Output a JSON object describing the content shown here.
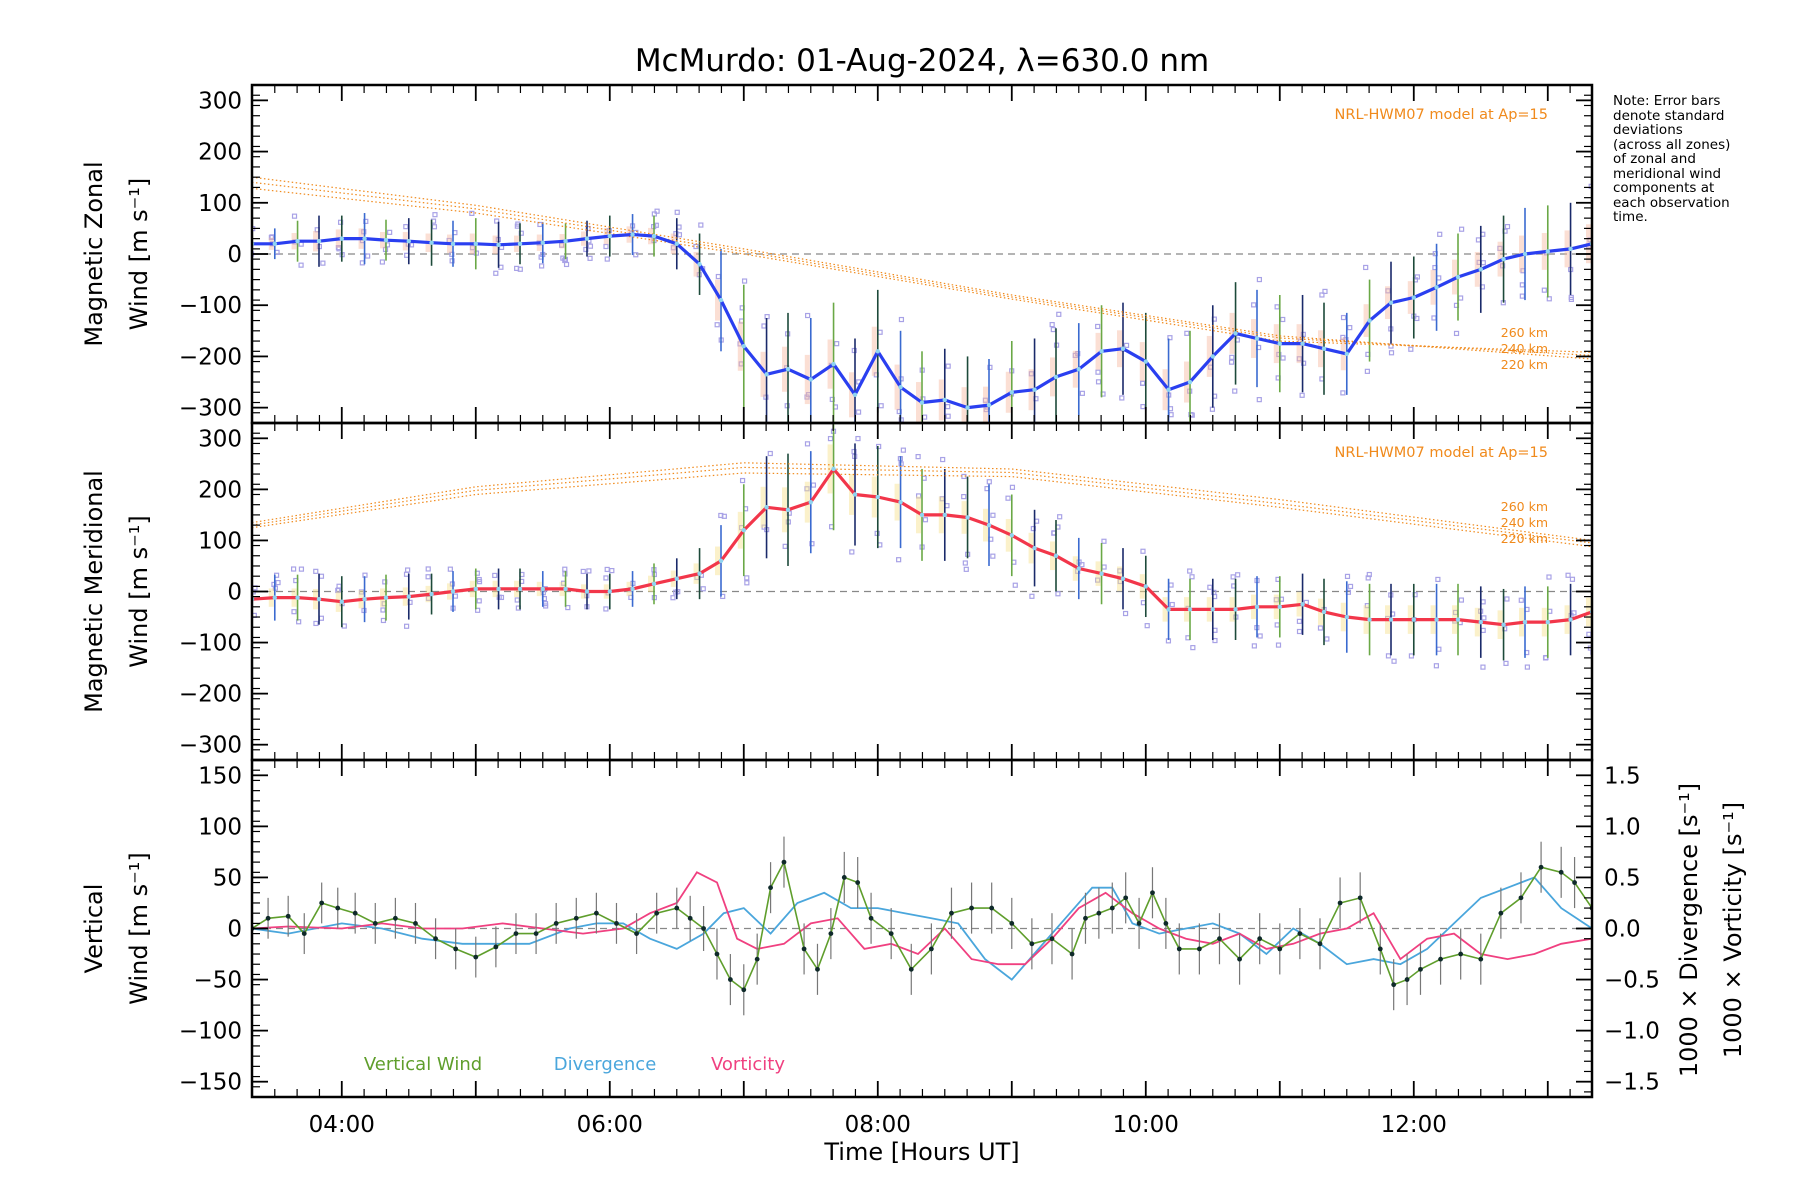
{
  "title": "McMurdo: 01-Aug-2024, λ=630.0 nm",
  "note": "Note: Error bars\ndenote standard\ndeviations\n(across all zones)\nof zonal and\nmeridional wind\ncomponents at\neach observation\ntime.",
  "colors": {
    "zonal": "#2a3ff0",
    "meridional": "#f2364a",
    "vertical": "#5f9e2c",
    "divergence": "#4aa6dc",
    "vorticity": "#f04080",
    "model": "#f08a1c",
    "scatter": "#a8a2e6",
    "zero_line": "#888888"
  },
  "xaxis": {
    "label": "Time [Hours UT]",
    "range": [
      3.33,
      13.33
    ],
    "ticks": [
      "04:00",
      "06:00",
      "08:00",
      "10:00",
      "12:00"
    ]
  },
  "chart_data": [
    {
      "type": "line",
      "ylabel_line1": "Magnetic Zonal",
      "ylabel_line2": "Wind [m s⁻¹]",
      "ylim": [
        -330,
        330
      ],
      "yticks": [
        "300",
        "200",
        "100",
        "0",
        "−100",
        "−200",
        "−300"
      ],
      "model_label": "NRL-HWM07 model at Ap=15",
      "model_altitudes": [
        "260 km",
        "240 km",
        "220 km"
      ],
      "model_curves": [
        {
          "x": [
            3.33,
            5,
            7,
            9,
            11,
            13.33
          ],
          "y": [
            150,
            95,
            10,
            -80,
            -160,
            -205
          ]
        },
        {
          "x": [
            3.33,
            5,
            7,
            9,
            11,
            13.33
          ],
          "y": [
            140,
            88,
            5,
            -84,
            -164,
            -198
          ]
        },
        {
          "x": [
            3.33,
            5,
            7,
            9,
            11,
            13.33
          ],
          "y": [
            128,
            80,
            0,
            -88,
            -170,
            -192
          ]
        }
      ],
      "series": [
        {
          "name": "Zonal wind",
          "x": [
            3.33,
            3.5,
            3.67,
            3.83,
            4.0,
            4.17,
            4.33,
            4.5,
            4.67,
            4.83,
            5.0,
            5.17,
            5.33,
            5.5,
            5.67,
            5.83,
            6.0,
            6.17,
            6.33,
            6.5,
            6.67,
            6.83,
            7.0,
            7.17,
            7.33,
            7.5,
            7.67,
            7.83,
            8.0,
            8.17,
            8.33,
            8.5,
            8.67,
            8.83,
            9.0,
            9.17,
            9.33,
            9.5,
            9.67,
            9.83,
            10.0,
            10.17,
            10.33,
            10.5,
            10.67,
            10.83,
            11.0,
            11.17,
            11.33,
            11.5,
            11.67,
            11.83,
            12.0,
            12.17,
            12.33,
            12.5,
            12.67,
            12.83,
            13.0,
            13.17,
            13.33
          ],
          "y": [
            20,
            20,
            25,
            25,
            30,
            30,
            27,
            25,
            22,
            20,
            20,
            18,
            20,
            22,
            25,
            30,
            35,
            38,
            35,
            20,
            -20,
            -90,
            -180,
            -235,
            -225,
            -245,
            -215,
            -275,
            -190,
            -260,
            -290,
            -285,
            -300,
            -295,
            -270,
            -265,
            -240,
            -225,
            -190,
            -185,
            -210,
            -265,
            -250,
            -200,
            -155,
            -165,
            -175,
            -175,
            -185,
            -195,
            -130,
            -95,
            -85,
            -65,
            -45,
            -30,
            -10,
            0,
            5,
            10,
            20
          ],
          "err": [
            30,
            30,
            40,
            50,
            45,
            50,
            40,
            45,
            45,
            45,
            50,
            45,
            40,
            40,
            35,
            35,
            40,
            40,
            40,
            50,
            60,
            100,
            120,
            110,
            110,
            120,
            120,
            110,
            120,
            110,
            100,
            100,
            100,
            90,
            100,
            100,
            95,
            90,
            90,
            90,
            95,
            100,
            100,
            100,
            100,
            95,
            95,
            95,
            90,
            80,
            80,
            80,
            80,
            85,
            85,
            85,
            85,
            90,
            90,
            90,
            95
          ]
        }
      ]
    },
    {
      "type": "line",
      "ylabel_line1": "Magnetic Meridional",
      "ylabel_line2": "Wind [m s⁻¹]",
      "ylim": [
        -330,
        330
      ],
      "yticks": [
        "300",
        "200",
        "100",
        "0",
        "−100",
        "−200",
        "−300"
      ],
      "model_label": "NRL-HWM07 model at Ap=15",
      "model_altitudes": [
        "260 km",
        "240 km",
        "220 km"
      ],
      "model_curves": [
        {
          "x": [
            3.33,
            5,
            7,
            9,
            11,
            13.33
          ],
          "y": [
            135,
            205,
            252,
            240,
            180,
            100
          ]
        },
        {
          "x": [
            3.33,
            5,
            7,
            9,
            11,
            13.33
          ],
          "y": [
            130,
            198,
            243,
            233,
            172,
            95
          ]
        },
        {
          "x": [
            3.33,
            5,
            7,
            9,
            11,
            13.33
          ],
          "y": [
            125,
            190,
            232,
            225,
            165,
            88
          ]
        }
      ],
      "series": [
        {
          "name": "Meridional wind",
          "x": [
            3.33,
            3.5,
            3.67,
            3.83,
            4.0,
            4.17,
            4.33,
            4.5,
            4.67,
            4.83,
            5.0,
            5.17,
            5.33,
            5.5,
            5.67,
            5.83,
            6.0,
            6.17,
            6.33,
            6.5,
            6.67,
            6.83,
            7.0,
            7.17,
            7.33,
            7.5,
            7.67,
            7.83,
            8.0,
            8.17,
            8.33,
            8.5,
            8.67,
            8.83,
            9.0,
            9.17,
            9.33,
            9.5,
            9.67,
            9.83,
            10.0,
            10.17,
            10.33,
            10.5,
            10.67,
            10.83,
            11.0,
            11.17,
            11.33,
            11.5,
            11.67,
            11.83,
            12.0,
            12.17,
            12.33,
            12.5,
            12.67,
            12.83,
            13.0,
            13.17,
            13.33
          ],
          "y": [
            -15,
            -12,
            -12,
            -15,
            -20,
            -15,
            -12,
            -10,
            -5,
            0,
            5,
            5,
            5,
            5,
            5,
            0,
            0,
            5,
            15,
            25,
            35,
            60,
            120,
            165,
            160,
            175,
            240,
            190,
            185,
            175,
            150,
            150,
            145,
            130,
            110,
            85,
            70,
            45,
            35,
            25,
            10,
            -35,
            -35,
            -35,
            -35,
            -30,
            -30,
            -25,
            -40,
            -50,
            -55,
            -55,
            -55,
            -55,
            -55,
            -60,
            -65,
            -60,
            -60,
            -55,
            -40
          ],
          "err": [
            40,
            45,
            45,
            50,
            50,
            45,
            45,
            45,
            40,
            40,
            40,
            40,
            40,
            35,
            35,
            35,
            35,
            35,
            40,
            40,
            50,
            70,
            90,
            100,
            110,
            100,
            120,
            100,
            100,
            90,
            90,
            90,
            80,
            80,
            80,
            75,
            70,
            60,
            60,
            60,
            60,
            60,
            60,
            60,
            60,
            60,
            60,
            60,
            65,
            70,
            70,
            70,
            70,
            70,
            70,
            70,
            70,
            70,
            70,
            70,
            70
          ]
        }
      ]
    },
    {
      "type": "line",
      "ylabel_line1": "Vertical",
      "ylabel_line2": "Wind [m s⁻¹]",
      "ylim": [
        -165,
        165
      ],
      "yticks": [
        "150",
        "100",
        "50",
        "0",
        "−50",
        "−100",
        "−150"
      ],
      "y2label_line1": "1000 × Divergence [s⁻¹]",
      "y2label_line2": "1000 × Vorticity [s⁻¹]",
      "y2lim": [
        -1.65,
        1.65
      ],
      "y2ticks": [
        "1.5",
        "1.0",
        "0.5",
        "0.0",
        "−0.5",
        "−1.0",
        "−1.5"
      ],
      "legend": [
        "Vertical Wind",
        "Divergence",
        "Vorticity"
      ],
      "series": [
        {
          "name": "Vertical Wind",
          "x": [
            3.33,
            3.45,
            3.6,
            3.72,
            3.85,
            3.97,
            4.1,
            4.25,
            4.4,
            4.55,
            4.7,
            4.85,
            5.0,
            5.15,
            5.3,
            5.45,
            5.6,
            5.75,
            5.9,
            6.05,
            6.2,
            6.35,
            6.5,
            6.6,
            6.7,
            6.8,
            6.9,
            7.0,
            7.1,
            7.2,
            7.3,
            7.45,
            7.55,
            7.65,
            7.75,
            7.85,
            7.95,
            8.1,
            8.25,
            8.4,
            8.55,
            8.7,
            8.85,
            9.0,
            9.15,
            9.3,
            9.45,
            9.55,
            9.65,
            9.75,
            9.85,
            9.95,
            10.05,
            10.15,
            10.25,
            10.4,
            10.55,
            10.7,
            10.85,
            11.0,
            11.15,
            11.3,
            11.45,
            11.6,
            11.75,
            11.85,
            11.95,
            12.05,
            12.2,
            12.35,
            12.5,
            12.65,
            12.8,
            12.95,
            13.1,
            13.2,
            13.33
          ],
          "y": [
            0,
            10,
            12,
            -5,
            25,
            20,
            15,
            5,
            10,
            5,
            -10,
            -20,
            -28,
            -18,
            -5,
            -5,
            5,
            10,
            15,
            5,
            -5,
            15,
            20,
            10,
            0,
            -25,
            -50,
            -60,
            -30,
            40,
            65,
            -20,
            -40,
            -5,
            50,
            45,
            10,
            -5,
            -40,
            -20,
            15,
            20,
            20,
            5,
            -15,
            -10,
            -25,
            10,
            15,
            20,
            30,
            5,
            35,
            5,
            -20,
            -20,
            -10,
            -30,
            -10,
            -20,
            -5,
            -15,
            25,
            30,
            -20,
            -55,
            -50,
            -40,
            -30,
            -25,
            -30,
            15,
            30,
            60,
            55,
            45,
            20
          ],
          "err": [
            20,
            20,
            20,
            20,
            20,
            20,
            20,
            20,
            20,
            20,
            20,
            20,
            20,
            20,
            20,
            20,
            20,
            20,
            20,
            20,
            20,
            20,
            20,
            22,
            22,
            25,
            25,
            25,
            25,
            25,
            25,
            25,
            25,
            25,
            25,
            25,
            25,
            25,
            25,
            25,
            25,
            25,
            25,
            25,
            25,
            25,
            25,
            25,
            25,
            25,
            25,
            25,
            25,
            25,
            25,
            25,
            25,
            25,
            25,
            25,
            25,
            25,
            25,
            25,
            25,
            25,
            25,
            25,
            25,
            25,
            25,
            25,
            25,
            25,
            25,
            25,
            25
          ]
        },
        {
          "name": "Divergence",
          "x": [
            3.33,
            3.6,
            4.0,
            4.3,
            4.6,
            4.9,
            5.1,
            5.4,
            5.7,
            5.9,
            6.1,
            6.3,
            6.5,
            6.7,
            6.85,
            7.0,
            7.2,
            7.4,
            7.6,
            7.8,
            8.0,
            8.2,
            8.4,
            8.6,
            8.8,
            9.0,
            9.2,
            9.4,
            9.6,
            9.75,
            9.9,
            10.1,
            10.3,
            10.5,
            10.7,
            10.9,
            11.1,
            11.3,
            11.5,
            11.7,
            11.9,
            12.1,
            12.3,
            12.5,
            12.7,
            12.9,
            13.1,
            13.33
          ],
          "y": [
            0.0,
            -0.05,
            0.05,
            0.0,
            -0.1,
            -0.15,
            -0.15,
            -0.15,
            0.0,
            0.05,
            0.05,
            -0.1,
            -0.2,
            -0.05,
            0.15,
            0.2,
            -0.05,
            0.25,
            0.35,
            0.2,
            0.2,
            0.15,
            0.1,
            0.05,
            -0.3,
            -0.5,
            -0.2,
            0.1,
            0.4,
            0.4,
            0.05,
            -0.05,
            0.0,
            0.05,
            -0.05,
            -0.25,
            0.0,
            -0.15,
            -0.35,
            -0.3,
            -0.35,
            -0.2,
            0.05,
            0.3,
            0.4,
            0.5,
            0.2,
            0.0
          ]
        },
        {
          "name": "Vorticity",
          "x": [
            3.33,
            3.6,
            4.0,
            4.3,
            4.6,
            4.9,
            5.2,
            5.5,
            5.8,
            6.1,
            6.3,
            6.5,
            6.65,
            6.8,
            6.95,
            7.1,
            7.3,
            7.5,
            7.7,
            7.9,
            8.1,
            8.3,
            8.5,
            8.7,
            8.9,
            9.1,
            9.3,
            9.5,
            9.7,
            9.9,
            10.1,
            10.3,
            10.5,
            10.7,
            10.9,
            11.1,
            11.3,
            11.5,
            11.7,
            11.9,
            12.1,
            12.3,
            12.5,
            12.7,
            12.9,
            13.1,
            13.33
          ],
          "y": [
            0.0,
            0.02,
            0.0,
            0.05,
            0.0,
            0.0,
            0.05,
            0.0,
            -0.05,
            0.0,
            0.15,
            0.25,
            0.55,
            0.45,
            -0.1,
            -0.2,
            -0.15,
            0.05,
            0.1,
            -0.2,
            -0.15,
            -0.25,
            0.0,
            -0.3,
            -0.35,
            -0.35,
            -0.1,
            0.2,
            0.35,
            0.15,
            0.0,
            -0.1,
            -0.15,
            -0.05,
            -0.2,
            -0.15,
            -0.05,
            0.0,
            0.15,
            -0.3,
            -0.1,
            -0.05,
            -0.25,
            -0.3,
            -0.25,
            -0.15,
            -0.1
          ]
        }
      ]
    }
  ]
}
